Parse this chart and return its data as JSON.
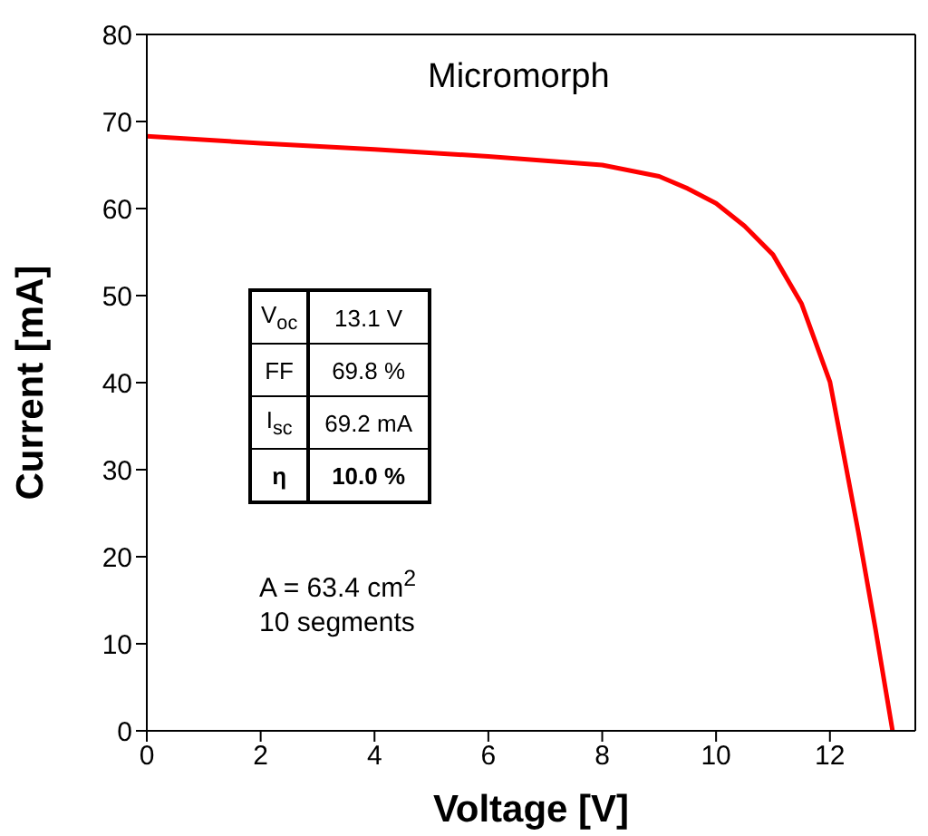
{
  "chart_data": {
    "type": "line",
    "title": "Micromorph",
    "xlabel": "Voltage [V]",
    "ylabel": "Current [mA]",
    "x": [
      0,
      2,
      4,
      6,
      8,
      9,
      9.5,
      10,
      10.5,
      11,
      11.5,
      12,
      12.2,
      12.5,
      12.8,
      13.1
    ],
    "series": [
      {
        "color": "#ff0000",
        "values": [
          68.3,
          67.5,
          66.8,
          66.0,
          65.0,
          63.7,
          62.3,
          60.6,
          58.0,
          54.7,
          49.1,
          40.1,
          33.2,
          22.8,
          11.7,
          0
        ]
      }
    ],
    "xlim": [
      0,
      13.5
    ],
    "xticks": [
      0,
      2,
      4,
      6,
      8,
      10,
      12
    ],
    "ylim": [
      0,
      80
    ],
    "yticks": [
      0,
      10,
      20,
      30,
      40,
      50,
      60,
      70,
      80
    ],
    "grid": false,
    "legend": false,
    "marker": "none",
    "line_style": "solid",
    "annotations": [
      "V$_{oc}$",
      "13.1 V",
      "FF",
      "69.8 %",
      "I$_{sc}$",
      "69.2 mA",
      "η",
      "10.0 %",
      "A = 63.4 cm$^{2}$",
      "10 segments"
    ]
  }
}
